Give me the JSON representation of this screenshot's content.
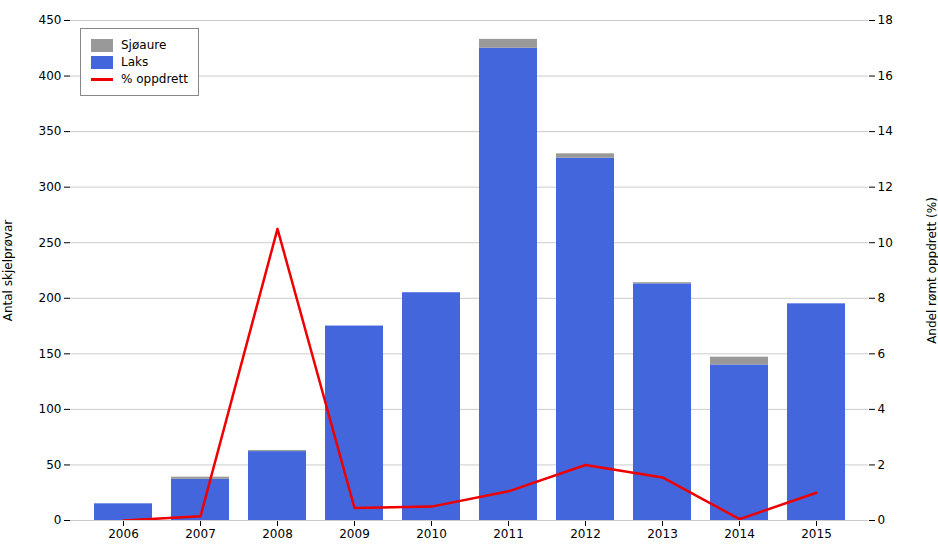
{
  "chart_data": {
    "type": "bar",
    "stacked": true,
    "categories": [
      "2006",
      "2007",
      "2008",
      "2009",
      "2010",
      "2011",
      "2012",
      "2013",
      "2014",
      "2015"
    ],
    "series": [
      {
        "name": "Laks",
        "color": "#4466dd",
        "values": [
          15,
          37,
          62,
          175,
          205,
          425,
          326,
          213,
          140,
          195
        ]
      },
      {
        "name": "Sjøaure",
        "color": "#999999",
        "values": [
          0,
          2,
          1,
          0,
          0,
          8,
          4,
          1,
          7,
          0
        ]
      },
      {
        "name": "% oppdrett",
        "type": "line",
        "axis": "y2",
        "color": "#ee0000",
        "values": [
          0.0,
          0.15,
          10.5,
          0.45,
          0.5,
          1.05,
          2.0,
          1.55,
          0.05,
          1.0
        ]
      }
    ],
    "ylabel": "Antal skjelprøvar",
    "y2label": "Andel rømt oppdrett (%)",
    "ylim": [
      0,
      450
    ],
    "yticks": [
      0,
      50,
      100,
      150,
      200,
      250,
      300,
      350,
      400,
      450
    ],
    "y2lim": [
      0,
      18
    ],
    "y2ticks": [
      0,
      2,
      4,
      6,
      8,
      10,
      12,
      14,
      16,
      18
    ],
    "grid": true,
    "legend": "upper left"
  }
}
